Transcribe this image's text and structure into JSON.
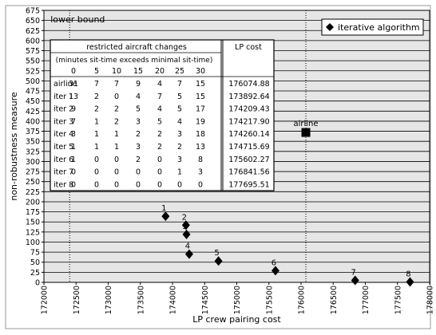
{
  "chart_data": {
    "type": "scatter",
    "xlabel": "LP crew pairing cost",
    "ylabel": "non-robustness measure",
    "xlim": [
      172000,
      178000
    ],
    "ylim": [
      0,
      675
    ],
    "x_ticks": [
      172000,
      172500,
      173000,
      173500,
      174000,
      174500,
      175000,
      175500,
      176000,
      176500,
      177000,
      177500,
      178000
    ],
    "y_ticks": [
      0,
      25,
      50,
      75,
      100,
      125,
      150,
      175,
      200,
      225,
      250,
      275,
      300,
      325,
      350,
      375,
      400,
      425,
      450,
      475,
      500,
      525,
      550,
      575,
      600,
      625,
      650,
      675
    ],
    "grid": "horizontal",
    "background": "#e6e6e6",
    "lower_bound": {
      "x": 172400,
      "label": "lower bound"
    },
    "airline_line_x": 176074.88,
    "legend": {
      "label": "iterative algorithm",
      "position": "top-right"
    },
    "series": [
      {
        "name": "iterative algorithm",
        "marker": "diamond",
        "points": [
          {
            "x": 173892.64,
            "y": 164,
            "label": "1"
          },
          {
            "x": 174209.43,
            "y": 142,
            "label": "2"
          },
          {
            "x": 174217.9,
            "y": 119,
            "label": "3"
          },
          {
            "x": 174260.14,
            "y": 70,
            "label": "4"
          },
          {
            "x": 174715.69,
            "y": 53,
            "label": "5"
          },
          {
            "x": 175602.27,
            "y": 29,
            "label": "6"
          },
          {
            "x": 176841.56,
            "y": 5,
            "label": "7"
          },
          {
            "x": 177695.51,
            "y": 1,
            "label": "8"
          }
        ]
      },
      {
        "marker": "square",
        "points": [
          {
            "x": 176074.88,
            "y": 372,
            "label": "airline"
          }
        ]
      }
    ],
    "table": {
      "header_title": "restricted aircraft changes",
      "header_subtitle": "(minutes sit-time exceeds minimal sit-time)",
      "lp_header": "LP cost",
      "columns": [
        "0",
        "5",
        "10",
        "15",
        "20",
        "25",
        "30"
      ],
      "rows": [
        {
          "label": "airline",
          "values": [
            "31",
            "7",
            "7",
            "9",
            "4",
            "7",
            "15"
          ],
          "lp": "176074.88"
        },
        {
          "label": "iter 1",
          "values": [
            "13",
            "2",
            "0",
            "4",
            "7",
            "5",
            "15"
          ],
          "lp": "173892.64"
        },
        {
          "label": "iter 2",
          "values": [
            "9",
            "2",
            "2",
            "5",
            "4",
            "5",
            "17"
          ],
          "lp": "174209.43"
        },
        {
          "label": "iter 3",
          "values": [
            "7",
            "1",
            "2",
            "3",
            "5",
            "4",
            "19"
          ],
          "lp": "174217.90"
        },
        {
          "label": "iter 4",
          "values": [
            "3",
            "1",
            "1",
            "2",
            "2",
            "3",
            "18"
          ],
          "lp": "174260.14"
        },
        {
          "label": "iter 5",
          "values": [
            "1",
            "1",
            "1",
            "3",
            "2",
            "2",
            "13"
          ],
          "lp": "174715.69"
        },
        {
          "label": "iter 6",
          "values": [
            "1",
            "0",
            "0",
            "2",
            "0",
            "3",
            "8"
          ],
          "lp": "175602.27"
        },
        {
          "label": "iter 7",
          "values": [
            "0",
            "0",
            "0",
            "0",
            "0",
            "1",
            "3"
          ],
          "lp": "176841.56"
        },
        {
          "label": "iter 8",
          "values": [
            "0",
            "0",
            "0",
            "0",
            "0",
            "0",
            "0"
          ],
          "lp": "177695.51"
        }
      ]
    }
  }
}
